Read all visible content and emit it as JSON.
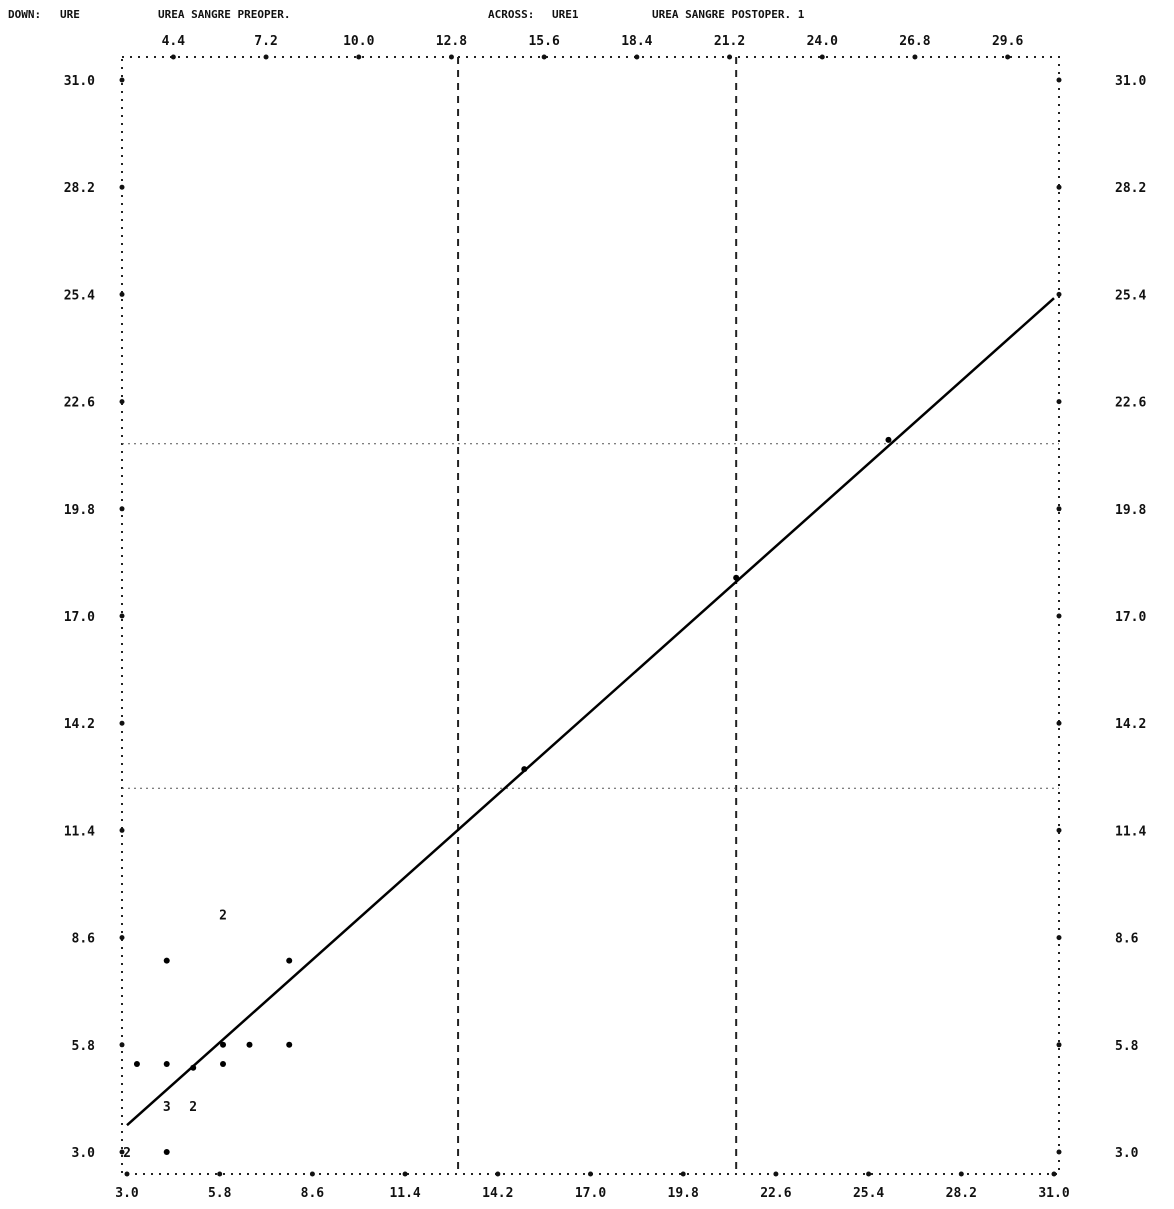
{
  "header": {
    "down_label": "DOWN:",
    "down_var": "URE",
    "down_desc": "UREA SANGRE PREOPER.",
    "across_label": "ACROSS:",
    "across_var": "URE1",
    "across_desc": "UREA SANGRE POSTOPER. 1"
  },
  "chart_data": {
    "type": "scatter",
    "title": "",
    "xlim": [
      3.0,
      31.0
    ],
    "ylim": [
      3.0,
      31.0
    ],
    "bottom_ticks": [
      "3.0",
      "5.8",
      "8.6",
      "11.4",
      "14.2",
      "17.0",
      "19.8",
      "22.6",
      "25.4",
      "28.2",
      "31.0"
    ],
    "top_ticks": [
      "4.4",
      "7.2",
      "10.0",
      "12.8",
      "15.6",
      "18.4",
      "21.2",
      "24.0",
      "26.8",
      "29.6"
    ],
    "y_ticks": [
      "3.0",
      "5.8",
      "8.6",
      "11.4",
      "14.2",
      "17.0",
      "19.8",
      "22.6",
      "25.4",
      "28.2",
      "31.0"
    ],
    "points": [
      {
        "x": 3.0,
        "y": 3.0,
        "mark": "2"
      },
      {
        "x": 4.2,
        "y": 3.0,
        "mark": "•"
      },
      {
        "x": 4.2,
        "y": 4.2,
        "mark": "3"
      },
      {
        "x": 5.0,
        "y": 4.2,
        "mark": "2"
      },
      {
        "x": 3.3,
        "y": 5.3,
        "mark": "•"
      },
      {
        "x": 4.2,
        "y": 5.3,
        "mark": "•"
      },
      {
        "x": 5.0,
        "y": 5.2,
        "mark": "•"
      },
      {
        "x": 5.9,
        "y": 5.3,
        "mark": "•"
      },
      {
        "x": 5.9,
        "y": 5.8,
        "mark": "•"
      },
      {
        "x": 6.7,
        "y": 5.8,
        "mark": "•"
      },
      {
        "x": 7.9,
        "y": 5.8,
        "mark": "•"
      },
      {
        "x": 4.2,
        "y": 8.0,
        "mark": "•"
      },
      {
        "x": 5.9,
        "y": 9.2,
        "mark": "2"
      },
      {
        "x": 7.9,
        "y": 8.0,
        "mark": "•"
      },
      {
        "x": 15.0,
        "y": 13.0,
        "mark": "•"
      },
      {
        "x": 21.4,
        "y": 18.0,
        "mark": "•"
      },
      {
        "x": 26.0,
        "y": 21.6,
        "mark": "•"
      }
    ],
    "regression_line": {
      "x1": 3.0,
      "y1": 3.7,
      "x2": 31.0,
      "y2": 25.3
    },
    "ref_vlines": [
      13.0,
      21.4
    ],
    "ref_hlines": [
      12.5,
      21.5
    ]
  }
}
